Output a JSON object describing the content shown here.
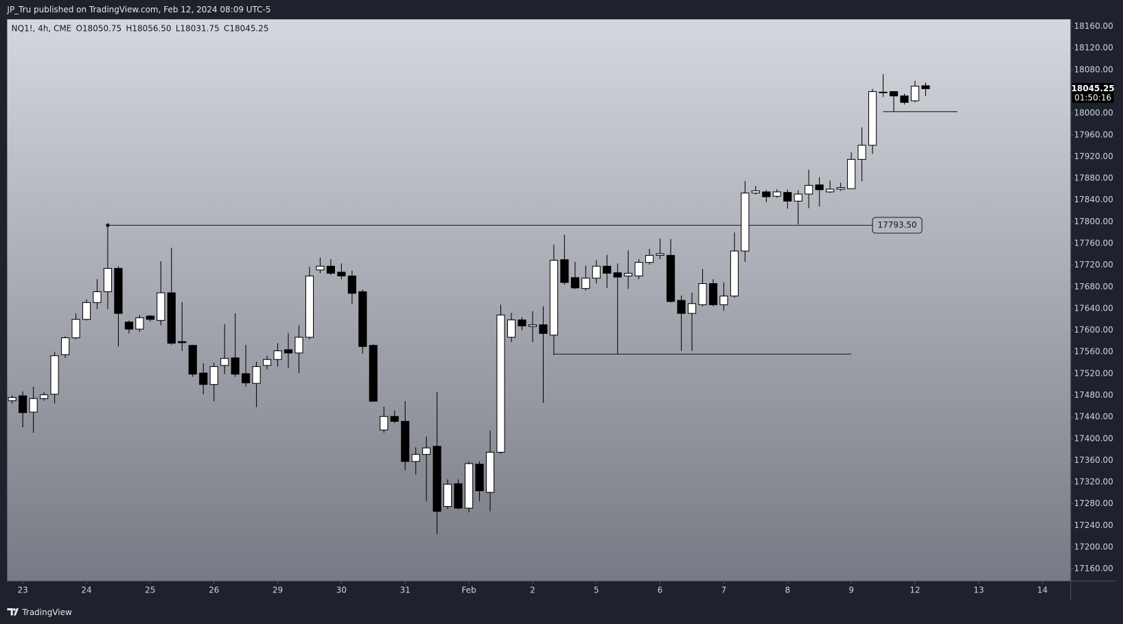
{
  "header": {
    "published": "JP_Tru published on TradingView.com, Feb 12, 2024 08:09 UTC-5"
  },
  "chart_data": {
    "type": "candlestick",
    "symbol": "NQ1!, 4h, CME",
    "legend_values": [
      "O18050.75",
      "H18056.50",
      "L18031.75",
      "C18045.25"
    ],
    "last_price_label": "18045.25",
    "countdown": "01:50:16",
    "up_color": "#ffffff",
    "down_color": "#000000",
    "wick_color": "#000000",
    "open": [
      17470,
      17479,
      17449,
      17474,
      17482,
      17555,
      17586,
      17620,
      17651,
      17671,
      17714,
      17615,
      17602,
      17626,
      17618,
      17669,
      17579,
      17572,
      17521,
      17500,
      17535,
      17549,
      17520,
      17502,
      17535,
      17546,
      17564,
      17558,
      17587,
      17711,
      17718,
      17707,
      17700,
      17671,
      17572,
      17416,
      17441,
      17432,
      17358,
      17371,
      17386,
      17275,
      17317,
      17272,
      17353,
      17301,
      17375,
      17587,
      17619,
      17607,
      17610,
      17591,
      17730,
      17697,
      17677,
      17696,
      17718,
      17706,
      17700,
      17700,
      17725,
      17738,
      17738,
      17655,
      17631,
      17647,
      17686,
      17647,
      17663,
      17746,
      17853,
      17855,
      17847,
      17854,
      17838,
      17851,
      17868,
      17855,
      17860,
      17861,
      17915,
      17941,
      18038,
      18040,
      18032,
      18023,
      18050.75
    ],
    "high": [
      17480,
      17487,
      17496,
      17486,
      17560,
      17589,
      17631,
      17657,
      17694,
      17793.5,
      17718,
      17618,
      17628,
      17628,
      17727,
      17752,
      17652,
      17573,
      17539,
      17540,
      17611,
      17631,
      17573,
      17542,
      17553,
      17576,
      17595,
      17609,
      17717,
      17734,
      17731,
      17723,
      17710,
      17675,
      17574,
      17459,
      17452,
      17469,
      17384,
      17404,
      17486,
      17325,
      17325,
      17358,
      17358,
      17415,
      17647,
      17632,
      17624,
      17635,
      17644,
      17758,
      17776,
      17726,
      17719,
      17729,
      17739,
      17723,
      17747,
      17731,
      17750,
      17769,
      17768,
      17664,
      17669,
      17713,
      17694,
      17688,
      17780,
      17875,
      17866,
      17859,
      17860,
      17859,
      17858,
      17896,
      17882,
      17876,
      17872,
      17928,
      17974,
      18045,
      18072,
      18040,
      18036,
      18060,
      18056.5
    ],
    "low": [
      17465,
      17421,
      17411,
      17470,
      17465,
      17549,
      17583,
      17618,
      17639,
      17639,
      17570,
      17594,
      17597,
      17616,
      17609,
      17573,
      17562,
      17514,
      17482,
      17469,
      17519,
      17514,
      17496,
      17458,
      17528,
      17533,
      17530,
      17521,
      17583,
      17705,
      17702,
      17694,
      17648,
      17557,
      17469,
      17411,
      17429,
      17342,
      17334,
      17285,
      17224,
      17270,
      17270,
      17264,
      17285,
      17266,
      17372,
      17578,
      17600,
      17578,
      17466,
      17554,
      17684,
      17676,
      17673,
      17686,
      17678,
      17556,
      17676,
      17694,
      17721,
      17731,
      17651,
      17562,
      17562,
      17644,
      17644,
      17636,
      17660,
      17726,
      17850,
      17836,
      17844,
      17824,
      17795,
      17825,
      17828,
      17853,
      17857,
      17861,
      17875,
      17925,
      18030,
      18003,
      18016,
      18020,
      18031.75
    ],
    "close": [
      17476,
      17448,
      17474,
      17481,
      17553,
      17586,
      17620,
      17651,
      17671,
      17714,
      17631,
      17602,
      17623,
      17620,
      17669,
      17576,
      17577,
      17519,
      17500,
      17533,
      17548,
      17519,
      17503,
      17533,
      17546,
      17562,
      17558,
      17587,
      17700,
      17718,
      17705,
      17700,
      17668,
      17570,
      17469,
      17441,
      17432,
      17358,
      17371,
      17383,
      17266,
      17316,
      17272,
      17354,
      17304,
      17375,
      17628,
      17619,
      17608,
      17610,
      17594,
      17729,
      17688,
      17678,
      17696,
      17718,
      17705,
      17698,
      17705,
      17725,
      17738,
      17741,
      17653,
      17631,
      17649,
      17686,
      17647,
      17663,
      17746,
      17853,
      17857,
      17846,
      17855,
      17838,
      17851,
      17867,
      17859,
      17860,
      17863,
      17915,
      17941,
      18040,
      18039,
      18032,
      18020,
      18050,
      18045.25
    ],
    "xlim": [
      -0.47,
      99.66
    ],
    "xticks": [
      {
        "value": 1,
        "label": "23"
      },
      {
        "value": 7,
        "label": "24"
      },
      {
        "value": 13,
        "label": "25"
      },
      {
        "value": 19,
        "label": "26"
      },
      {
        "value": 25,
        "label": "29"
      },
      {
        "value": 31,
        "label": "30"
      },
      {
        "value": 37,
        "label": "31"
      },
      {
        "value": 43,
        "label": "Feb"
      },
      {
        "value": 49,
        "label": "2"
      },
      {
        "value": 55,
        "label": "5"
      },
      {
        "value": 61,
        "label": "6"
      },
      {
        "value": 67,
        "label": "7"
      },
      {
        "value": 73,
        "label": "8"
      },
      {
        "value": 79,
        "label": "9"
      },
      {
        "value": 85,
        "label": "12"
      },
      {
        "value": 91,
        "label": "13"
      },
      {
        "value": 97,
        "label": "14"
      }
    ],
    "ylim": [
      17137.5,
      18173.2
    ],
    "yticks": [
      {
        "value": 17160,
        "label": "17160.00"
      },
      {
        "value": 17200,
        "label": "17200.00"
      },
      {
        "value": 17240,
        "label": "17240.00"
      },
      {
        "value": 17280,
        "label": "17280.00"
      },
      {
        "value": 17320,
        "label": "17320.00"
      },
      {
        "value": 17360,
        "label": "17360.00"
      },
      {
        "value": 17400,
        "label": "17400.00"
      },
      {
        "value": 17440,
        "label": "17440.00"
      },
      {
        "value": 17480,
        "label": "17480.00"
      },
      {
        "value": 17520,
        "label": "17520.00"
      },
      {
        "value": 17560,
        "label": "17560.00"
      },
      {
        "value": 17600,
        "label": "17600.00"
      },
      {
        "value": 17640,
        "label": "17640.00"
      },
      {
        "value": 17680,
        "label": "17680.00"
      },
      {
        "value": 17720,
        "label": "17720.00"
      },
      {
        "value": 17760,
        "label": "17760.00"
      },
      {
        "value": 17800,
        "label": "17800.00"
      },
      {
        "value": 17840,
        "label": "17840.00"
      },
      {
        "value": 17880,
        "label": "17880.00"
      },
      {
        "value": 17920,
        "label": "17920.00"
      },
      {
        "value": 17960,
        "label": "17960.00"
      },
      {
        "value": 18000,
        "label": "18000.00"
      },
      {
        "value": 18040,
        "label": "18040.00"
      },
      {
        "value": 18080,
        "label": "18080.00"
      },
      {
        "value": 18120,
        "label": "18120.00"
      },
      {
        "value": 18160,
        "label": "18160.00"
      }
    ],
    "lines": [
      {
        "price": 17793.5,
        "from": 9,
        "to": 81,
        "label": "17793.50",
        "marker": true
      },
      {
        "price": 17556,
        "from": 51,
        "to": 79
      },
      {
        "price": 18003,
        "from": 82,
        "to": 89
      }
    ]
  },
  "footer": {
    "brand": "TradingView"
  }
}
